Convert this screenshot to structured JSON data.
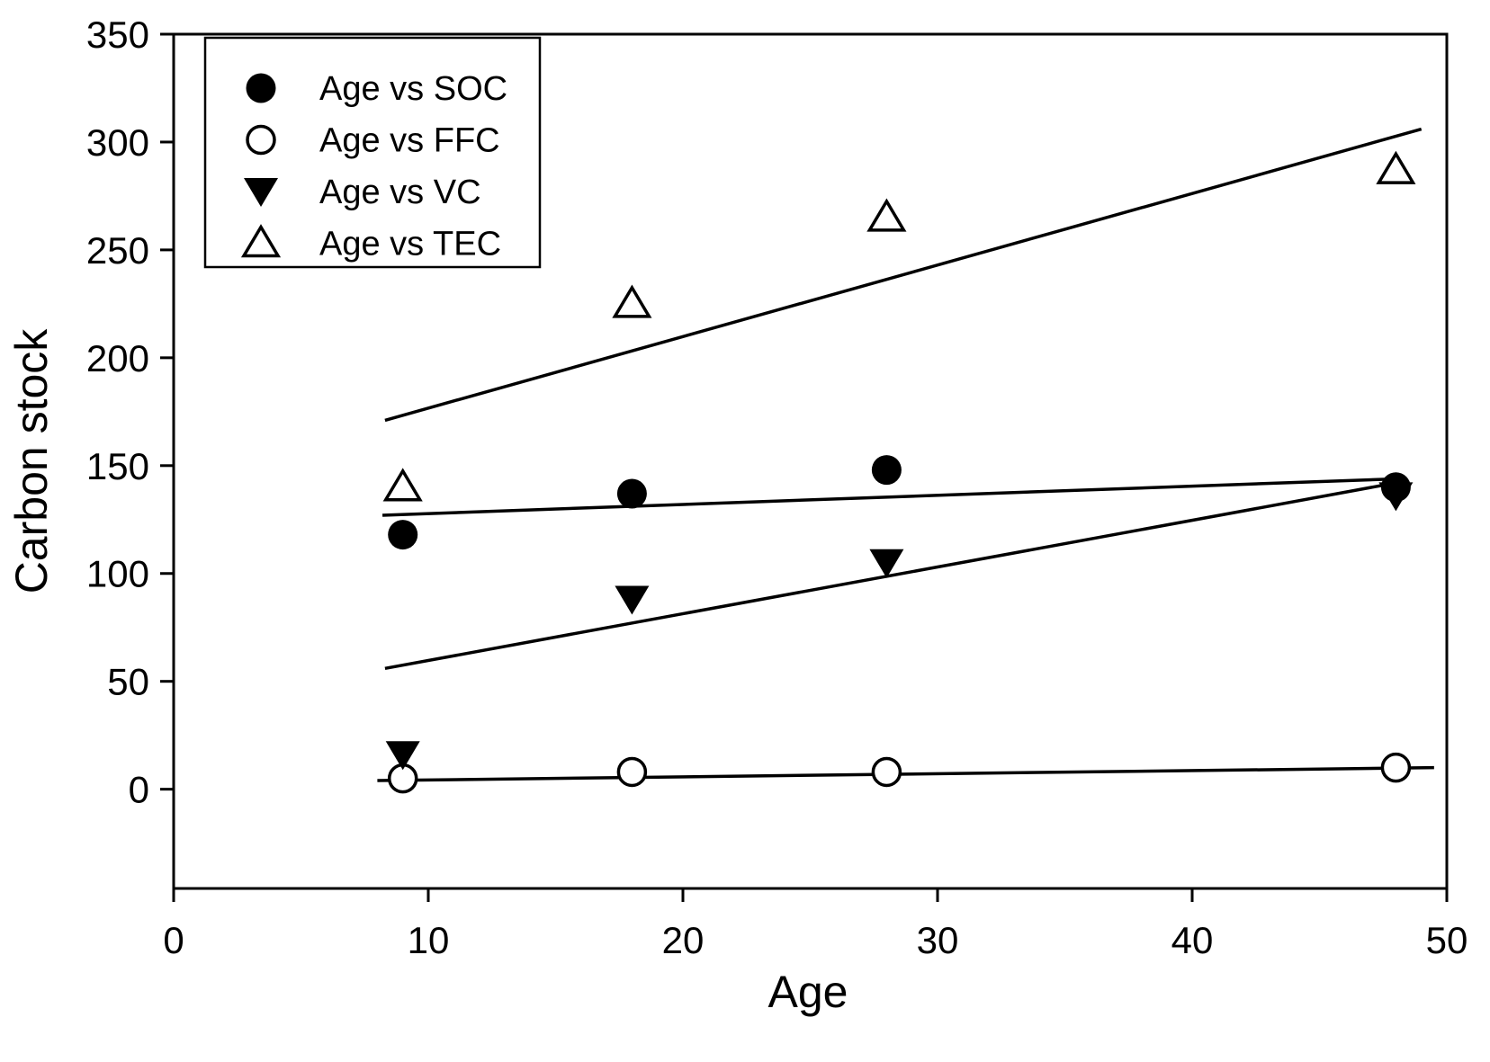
{
  "chart_data": {
    "type": "scatter",
    "title": "",
    "xlabel": "Age",
    "ylabel": "Carbon stock",
    "xlim": [
      0,
      50
    ],
    "ylim": [
      -46,
      350
    ],
    "x_ticks": [
      0,
      10,
      20,
      30,
      40,
      50
    ],
    "y_ticks": [
      0,
      50,
      100,
      150,
      200,
      250,
      300,
      350
    ],
    "grid": false,
    "legend_position": "top-left",
    "foreground_color": "#000000",
    "background_color": "#ffffff",
    "x": [
      9,
      18,
      28,
      48
    ],
    "series": [
      {
        "name": "Age vs SOC",
        "marker": "circle-filled",
        "values": [
          118,
          137,
          148,
          140
        ],
        "trendline": {
          "x1": 8.2,
          "y1": 127,
          "x2": 48.3,
          "y2": 144
        }
      },
      {
        "name": "Age vs FFC",
        "marker": "circle-open",
        "values": [
          5,
          8,
          8,
          10
        ],
        "trendline": {
          "x1": 8.0,
          "y1": 4,
          "x2": 49.5,
          "y2": 10
        }
      },
      {
        "name": "Age vs VC",
        "marker": "triangle-down-filled",
        "values": [
          16,
          88,
          105,
          136
        ],
        "trendline": {
          "x1": 8.3,
          "y1": 56,
          "x2": 48.0,
          "y2": 142
        }
      },
      {
        "name": "Age vs TEC",
        "marker": "triangle-up-open",
        "values": [
          140,
          225,
          265,
          287
        ],
        "trendline": {
          "x1": 8.3,
          "y1": 171,
          "x2": 49.0,
          "y2": 306
        }
      }
    ]
  }
}
